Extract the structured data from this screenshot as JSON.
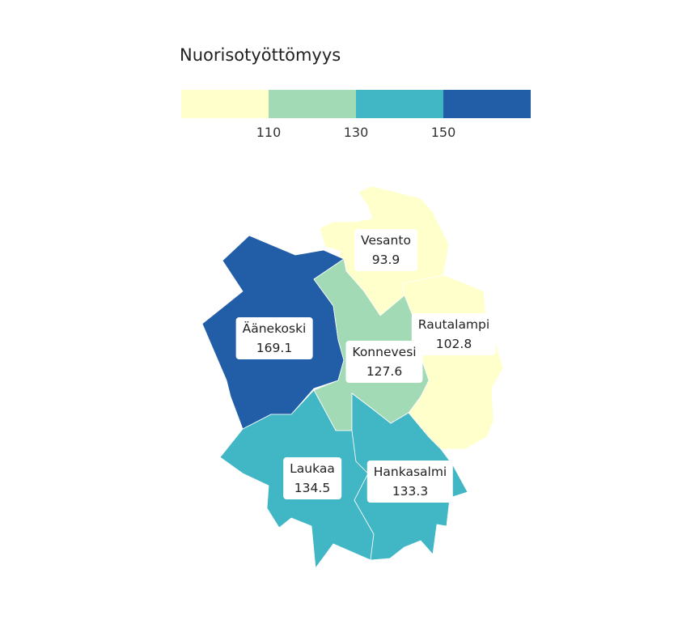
{
  "legend": {
    "title": "Nuorisotyöttömyys",
    "colors": [
      "#ffffcc",
      "#a1dab4",
      "#41b6c4",
      "#225ea8"
    ],
    "ticks": [
      "110",
      "130",
      "150"
    ]
  },
  "municipalities": [
    {
      "id": "vesanto",
      "name": "Vesanto",
      "value": "93.9",
      "color": "#ffffcc"
    },
    {
      "id": "rautalampi",
      "name": "Rautalampi",
      "value": "102.8",
      "color": "#ffffcc"
    },
    {
      "id": "aanekoski",
      "name": "Äänekoski",
      "value": "169.1",
      "color": "#225ea8"
    },
    {
      "id": "konnevesi",
      "name": "Konnevesi",
      "value": "127.6",
      "color": "#a1dab4"
    },
    {
      "id": "laukaa",
      "name": "Laukaa",
      "value": "134.5",
      "color": "#41b6c4"
    },
    {
      "id": "hankasalmi",
      "name": "Hankasalmi",
      "value": "133.3",
      "color": "#41b6c4"
    }
  ]
}
